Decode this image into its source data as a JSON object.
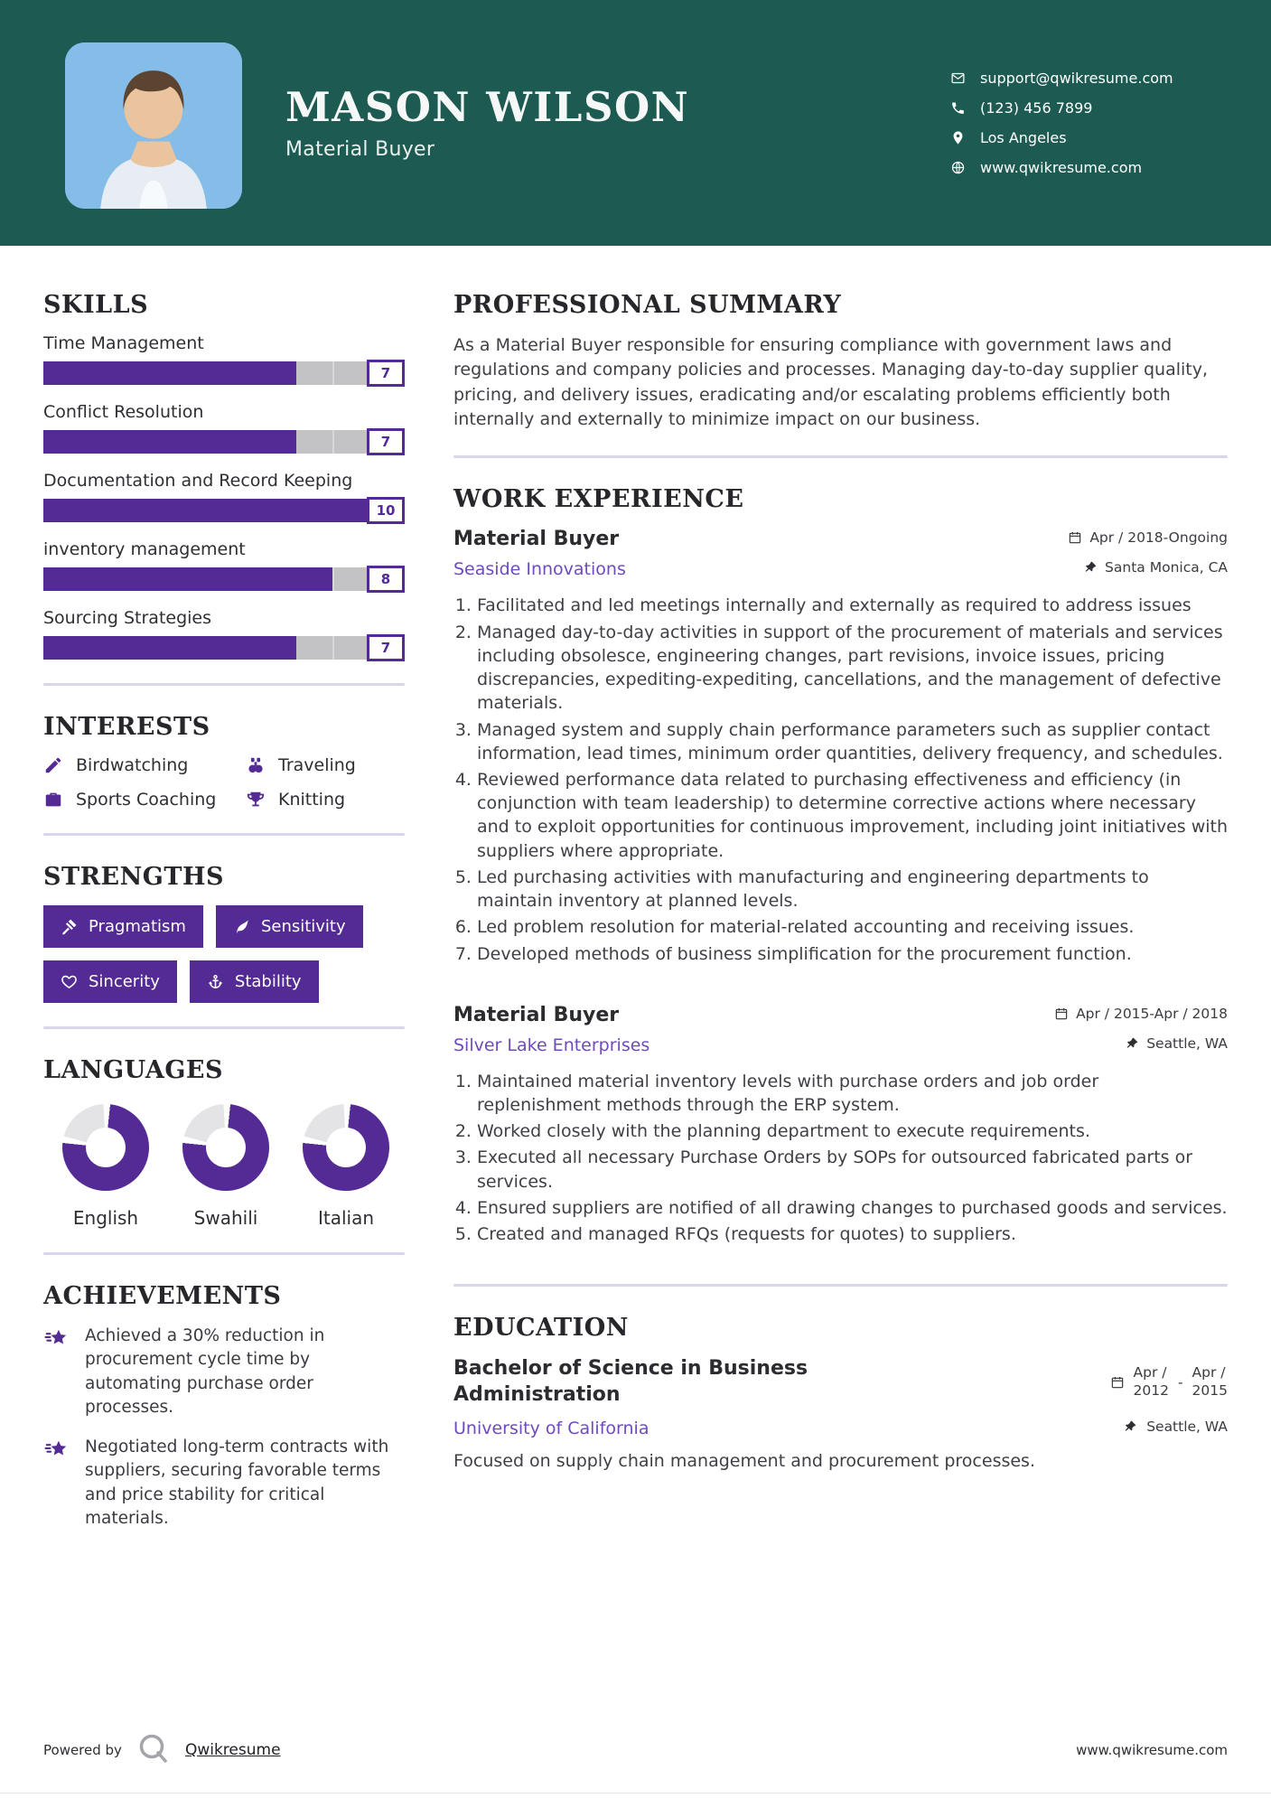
{
  "colors": {
    "header_bg": "#1d5b52",
    "accent": "#542a95",
    "link": "#6e4abe",
    "track": "#c3c2c4",
    "divider": "#dad6ea",
    "photo_bg": "#85bde9"
  },
  "header": {
    "name": "MASON WILSON",
    "title": "Material Buyer",
    "contacts": [
      {
        "icon": "email-icon",
        "text": "support@qwikresume.com"
      },
      {
        "icon": "phone-icon",
        "text": "(123) 456 7899"
      },
      {
        "icon": "location-icon",
        "text": "Los Angeles"
      },
      {
        "icon": "globe-icon",
        "text": "www.qwikresume.com"
      }
    ]
  },
  "skills": {
    "heading": "SKILLS",
    "items": [
      {
        "name": "Time Management",
        "rating": 7,
        "max": 10
      },
      {
        "name": "Conflict Resolution",
        "rating": 7,
        "max": 10
      },
      {
        "name": "Documentation and Record Keeping",
        "rating": 10,
        "max": 10
      },
      {
        "name": "inventory management",
        "rating": 8,
        "max": 10
      },
      {
        "name": "Sourcing Strategies",
        "rating": 7,
        "max": 10
      }
    ]
  },
  "interests": {
    "heading": "INTERESTS",
    "items": [
      {
        "icon": "pen-icon",
        "label": "Birdwatching"
      },
      {
        "icon": "binoculars-icon",
        "label": "Traveling"
      },
      {
        "icon": "briefcase-icon",
        "label": "Sports Coaching"
      },
      {
        "icon": "trophy-icon",
        "label": "Knitting"
      }
    ]
  },
  "strengths": {
    "heading": "STRENGTHS",
    "items": [
      {
        "icon": "gavel-icon",
        "label": "Pragmatism"
      },
      {
        "icon": "leaf-icon",
        "label": "Sensitivity"
      },
      {
        "icon": "heart-icon",
        "label": "Sincerity"
      },
      {
        "icon": "anchor-icon",
        "label": "Stability"
      }
    ]
  },
  "languages": {
    "heading": "LANGUAGES",
    "items": [
      {
        "label": "English",
        "percent": 75
      },
      {
        "label": "Swahili",
        "percent": 75
      },
      {
        "label": "Italian",
        "percent": 75
      }
    ]
  },
  "achievements": {
    "heading": "ACHIEVEMENTS",
    "items": [
      {
        "icon": "shooting-star-icon",
        "text": "Achieved a 30% reduction in procurement cycle time by automating purchase order processes."
      },
      {
        "icon": "shooting-star-icon",
        "text": "Negotiated long-term contracts with suppliers, securing favorable terms and price stability for critical materials."
      }
    ]
  },
  "summary": {
    "heading": "PROFESSIONAL SUMMARY",
    "text": "As a Material Buyer responsible for ensuring compliance with government laws and regulations and company policies and processes. Managing day-to-day supplier quality, pricing, and delivery issues, eradicating and/or escalating problems efficiently both internally and externally to minimize impact on our business."
  },
  "experience": {
    "heading": "WORK EXPERIENCE",
    "jobs": [
      {
        "title": "Material Buyer",
        "company": "Seaside Innovations",
        "dates": "Apr / 2018-Ongoing",
        "location": "Santa Monica, CA",
        "bullets": [
          "Facilitated and led meetings internally and externally as required to address issues",
          "Managed day-to-day activities in support of the procurement of materials and services including obsolesce, engineering changes, part revisions, invoice issues, pricing discrepancies, expediting-expediting, cancellations, and the management of defective materials.",
          "Managed system and supply chain performance parameters such as supplier contact information, lead times, minimum order quantities, delivery frequency, and schedules.",
          "Reviewed performance data related to purchasing effectiveness and efficiency (in conjunction with team leadership) to determine corrective actions where necessary and to exploit opportunities for continuous improvement, including joint initiatives with suppliers where appropriate.",
          "Led purchasing activities with manufacturing and engineering departments to maintain inventory at planned levels.",
          "Led problem resolution for material-related accounting and receiving issues.",
          "Developed methods of business simplification for the procurement function."
        ]
      },
      {
        "title": "Material Buyer",
        "company": "Silver Lake Enterprises",
        "dates": "Apr / 2015-Apr / 2018",
        "location": "Seattle, WA",
        "bullets": [
          "Maintained material inventory levels with purchase orders and job order replenishment methods through the ERP system.",
          "Worked closely with the planning department to execute requirements.",
          "Executed all necessary Purchase Orders by SOPs for outsourced fabricated parts or services.",
          "Ensured suppliers are notified of all drawing changes to purchased goods and services.",
          "Created and managed RFQs (requests for quotes) to suppliers."
        ]
      }
    ]
  },
  "education": {
    "heading": "EDUCATION",
    "degree": "Bachelor of Science in Business Administration",
    "school": "University of California",
    "date_start_top": "Apr /",
    "date_start_bottom": "2012",
    "date_separator": "-",
    "date_end_top": "Apr /",
    "date_end_bottom": "2015",
    "location": "Seattle, WA",
    "description": "Focused on supply chain management and procurement processes."
  },
  "footer": {
    "powered_by": "Powered by",
    "brand": "Qwikresume",
    "site": "www.qwikresume.com"
  }
}
